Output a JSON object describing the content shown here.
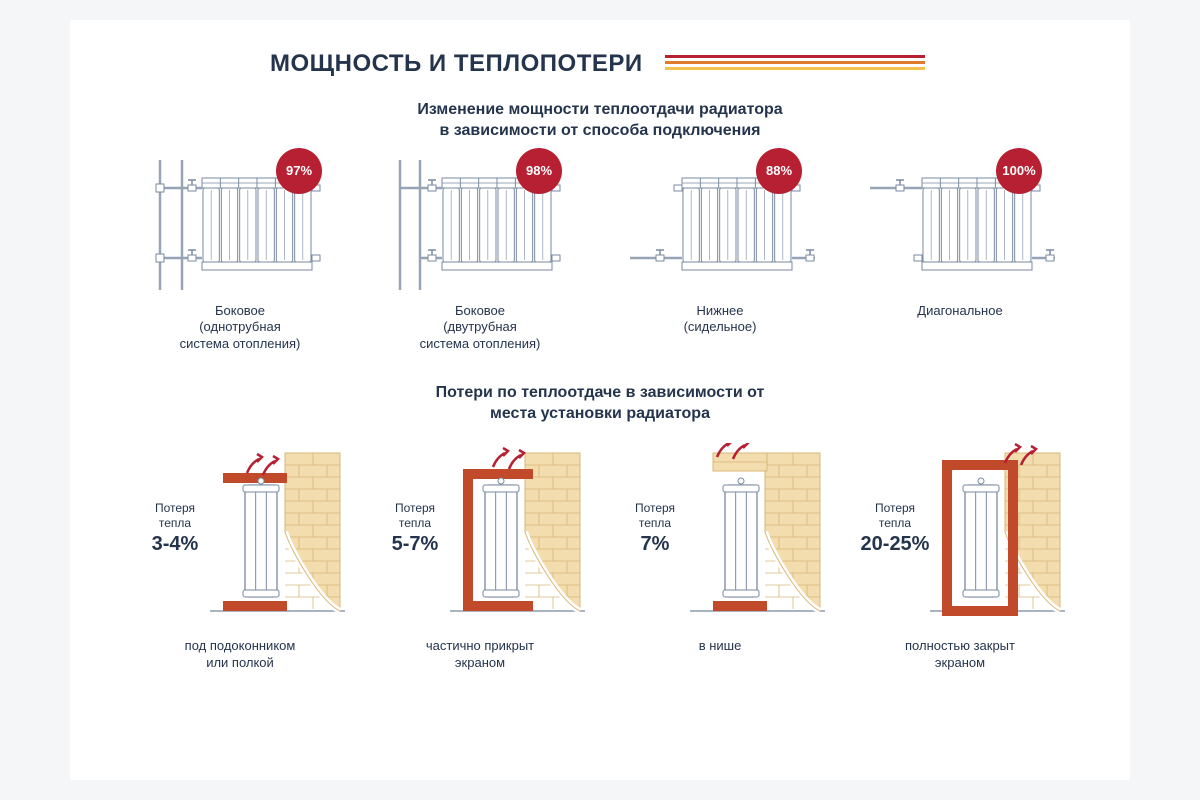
{
  "colors": {
    "title": "#25344d",
    "badge": "#b72032",
    "stripe1": "#b72032",
    "stripe2": "#e07b2c",
    "stripe3": "#f2c14e",
    "enclosure": "#c04a2a",
    "brick_fill": "#f3dcad",
    "brick_line": "#d9b77a",
    "radiator_line": "#7a8aa0",
    "radiator_fill": "#ffffff",
    "arrow": "#b72032",
    "floor": "#a9b3c2",
    "pipe": "#97a4b6"
  },
  "header": {
    "title": "МОЩНОСТЬ И ТЕПЛОПОТЕРИ"
  },
  "section1": {
    "subtitle_l1": "Изменение мощности теплоотдачи радиатора",
    "subtitle_l2": "в зависимости от способа подключения",
    "items": [
      {
        "pct": "97%",
        "caption_l1": "Боковое",
        "caption_l2": "(однотрубная",
        "caption_l3": "система отопления)",
        "type": "side-onepipe"
      },
      {
        "pct": "98%",
        "caption_l1": "Боковое",
        "caption_l2": "(двутрубная",
        "caption_l3": "система отопления)",
        "type": "side-twopipe"
      },
      {
        "pct": "88%",
        "caption_l1": "Нижнее",
        "caption_l2": "(сидельное)",
        "caption_l3": "",
        "type": "bottom"
      },
      {
        "pct": "100%",
        "caption_l1": "Диагональное",
        "caption_l2": "",
        "caption_l3": "",
        "type": "diagonal"
      }
    ]
  },
  "section2": {
    "subtitle_l1": "Потери по теплоотдаче в зависимости от",
    "subtitle_l2": "места установки радиатора",
    "loss_label_l1": "Потеря",
    "loss_label_l2": "тепла",
    "items": [
      {
        "pct": "3-4%",
        "caption_l1": "под подоконником",
        "caption_l2": "или полкой",
        "enclosure": "shelf"
      },
      {
        "pct": "5-7%",
        "caption_l1": "частично прикрыт",
        "caption_l2": "экраном",
        "enclosure": "partial"
      },
      {
        "pct": "7%",
        "caption_l1": "в нише",
        "caption_l2": "",
        "enclosure": "niche"
      },
      {
        "pct": "20-25%",
        "caption_l1": "полностью закрыт",
        "caption_l2": "экраном",
        "enclosure": "full"
      }
    ]
  }
}
